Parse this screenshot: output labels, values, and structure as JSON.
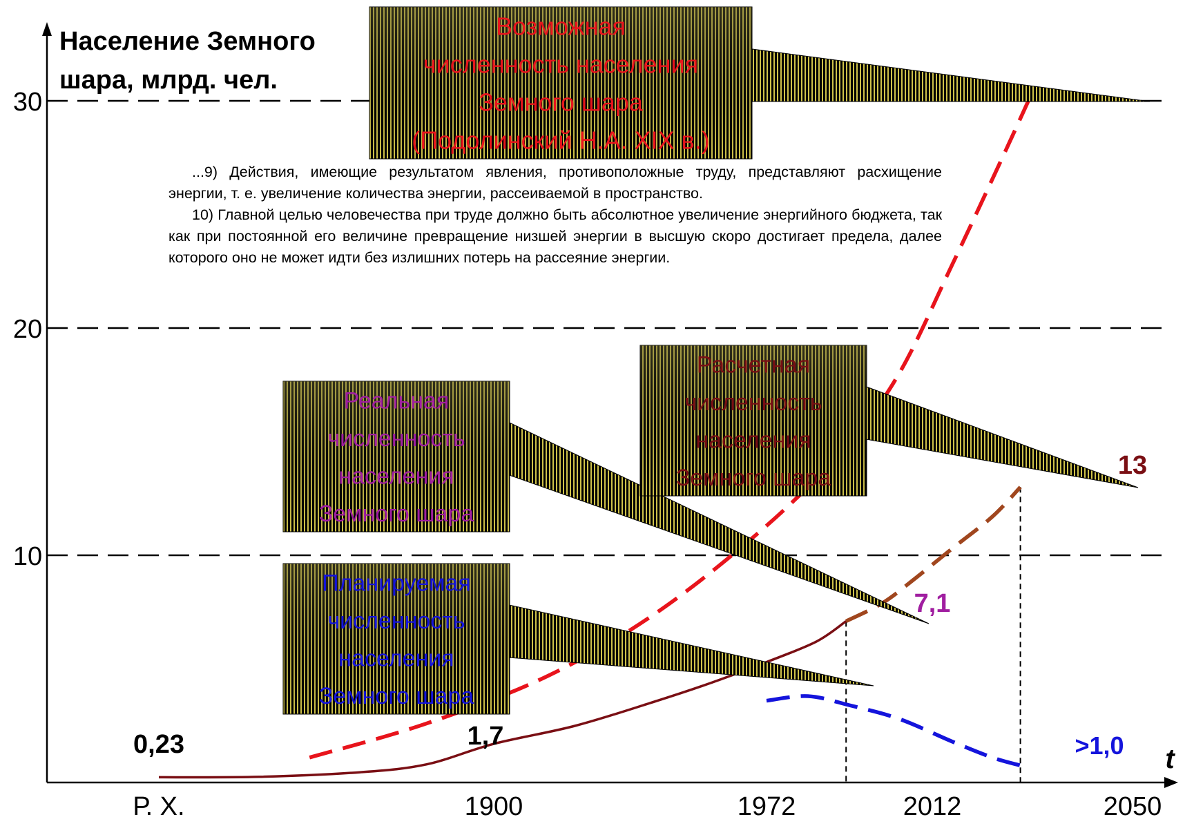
{
  "chart_data": {
    "type": "line",
    "ylabel_line1": "Население Земного",
    "ylabel_line2": "шара, млрд. чел.",
    "xlabel": "t",
    "x_categories": [
      "Р. Х.",
      "1900",
      "1972",
      "2012",
      "2050"
    ],
    "y_ticks": [
      10,
      20,
      30
    ],
    "ylim": [
      0,
      33
    ],
    "grid": "horizontal dashed at 10, 20, 30",
    "series": [
      {
        "key": "real",
        "color": "#7a0f14",
        "style": "solid",
        "points": [
          [
            0,
            0.23
          ],
          [
            0.3,
            0.25
          ],
          [
            0.6,
            0.45
          ],
          [
            0.8,
            0.8
          ],
          [
            1.0,
            1.7
          ],
          [
            1.3,
            2.5
          ],
          [
            1.6,
            3.6
          ],
          [
            1.8,
            4.4
          ],
          [
            2.0,
            5.3
          ],
          [
            2.3,
            6.2
          ],
          [
            2.48,
            7.1
          ]
        ]
      },
      {
        "key": "possible",
        "color": "#e8141c",
        "style": "dashed",
        "points": [
          [
            0.45,
            1.1
          ],
          [
            0.8,
            2.6
          ],
          [
            1.2,
            4.7
          ],
          [
            1.6,
            7.5
          ],
          [
            2.0,
            11.3
          ],
          [
            2.48,
            14.8
          ],
          [
            2.8,
            18.0
          ],
          [
            3.1,
            22.8
          ],
          [
            3.35,
            27.5
          ],
          [
            3.48,
            30
          ]
        ]
      },
      {
        "key": "calculated",
        "color": "#a0461e",
        "style": "dashed",
        "points": [
          [
            2.48,
            7.1
          ],
          [
            2.7,
            7.9
          ],
          [
            2.9,
            9.0
          ],
          [
            3.1,
            10.3
          ],
          [
            3.3,
            11.7
          ],
          [
            3.44,
            13
          ]
        ]
      },
      {
        "key": "planned",
        "color": "#1414dc",
        "style": "dashed",
        "points": [
          [
            2.0,
            3.6
          ],
          [
            2.25,
            3.8
          ],
          [
            2.5,
            3.4
          ],
          [
            2.8,
            2.8
          ],
          [
            3.1,
            1.8
          ],
          [
            3.3,
            1.1
          ],
          [
            3.44,
            0.75
          ]
        ]
      }
    ],
    "data_labels": [
      {
        "text": "0,23",
        "color": "#000000"
      },
      {
        "text": "1,7",
        "color": "#000000"
      },
      {
        "text": "7,1",
        "color": "#a01ea0"
      },
      {
        "text": "13",
        "color": "#7a0f14"
      },
      {
        "text": ">1,0",
        "color": "#1414dc"
      }
    ],
    "annotations": [
      {
        "key": "possible",
        "color": "#e8141c",
        "lines": [
          "Возможная",
          "численность населения",
          "Земного шара",
          "(Подолинский Н.А. XIX в.)"
        ]
      },
      {
        "key": "real",
        "color": "#a01ea0",
        "lines": [
          "Реальная",
          "численность",
          "населения",
          "Земного шара"
        ]
      },
      {
        "key": "calculated",
        "color": "#7a0f14",
        "lines": [
          "Расчетная",
          "численность",
          "населения",
          "Земного шара"
        ]
      },
      {
        "key": "planned",
        "color": "#1414dc",
        "lines": [
          "Планируемая",
          "численность",
          "населения",
          "Земного шара"
        ]
      }
    ]
  },
  "quote": {
    "p1": "...9) Действия, имеющие результатом явления, противоположные труду, представляют расхищение энергии, т. е. увеличение количества энергии, рассеиваемой в пространство.",
    "p2": "10) Главной целью человечества при труде должно быть абсолютное увеличение энергийного бюджета, так как при постоянной его величине превращение низшей энергии в высшую скоро достигает предела, далее которого оно не может идти без излишних потерь на рассеяние энергии."
  }
}
